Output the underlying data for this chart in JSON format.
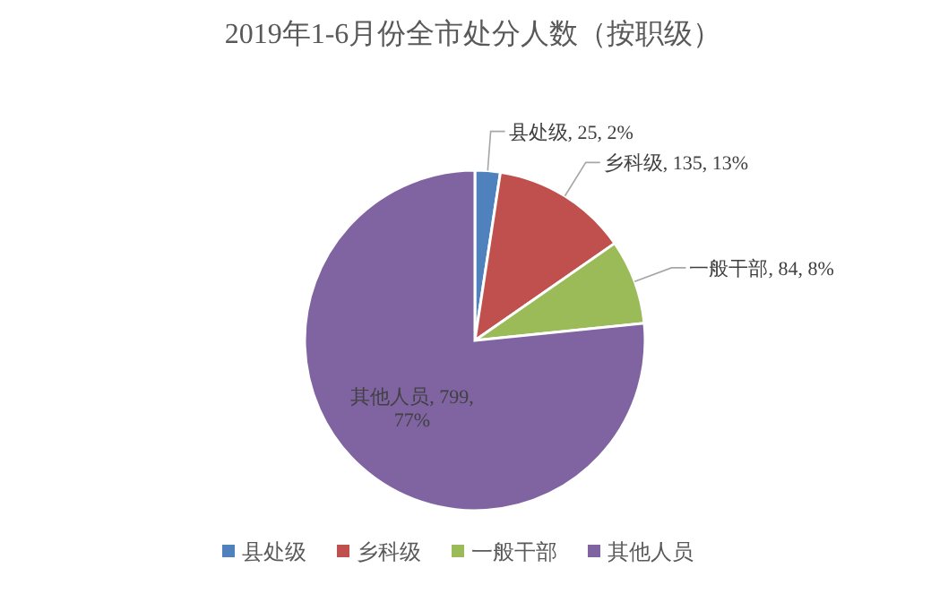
{
  "chart_data": {
    "type": "pie",
    "title": "2019年1-6月份全市处分人数（按职级）",
    "categories": [
      "县处级",
      "乡科级",
      "一般干部",
      "其他人员"
    ],
    "values": [
      25,
      135,
      84,
      799
    ],
    "colors": [
      "#4f81bd",
      "#c0504d",
      "#9bbb59",
      "#8064a2"
    ],
    "value_labels": [
      "县处级, 25, 2%",
      "乡科级, 135, 13%",
      "一般干部, 84, 8%",
      "其他人员, 799, 77%"
    ],
    "legend": "bottom"
  }
}
